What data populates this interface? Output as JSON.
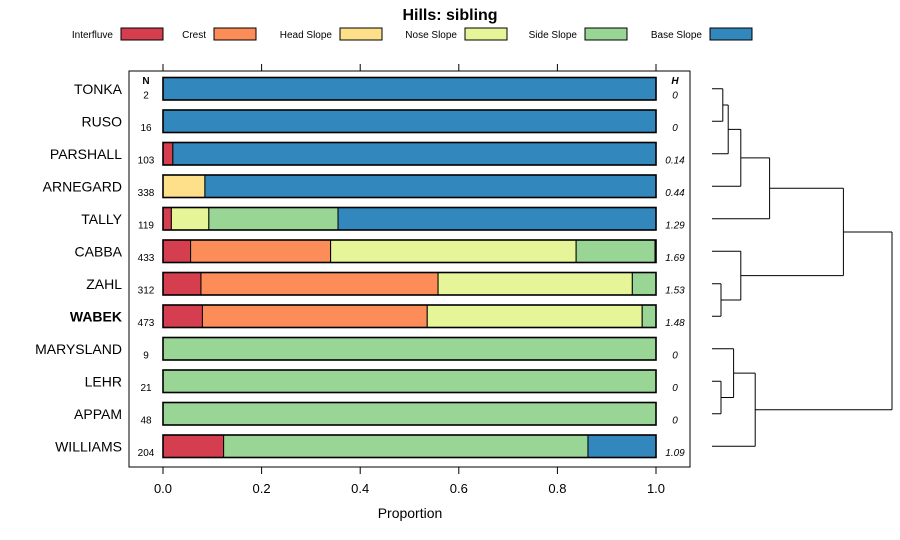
{
  "chart_data": {
    "type": "stacked-bar-horizontal",
    "title": "Hills: sibling",
    "xlabel": "Proportion",
    "ylabel": "",
    "xlim": [
      0,
      1
    ],
    "xticks": [
      "0.0",
      "0.2",
      "0.4",
      "0.6",
      "0.8",
      "1.0"
    ],
    "n_header": "N",
    "h_header": "H",
    "legend": [
      {
        "name": "Interfluve",
        "color": "#d53e4f"
      },
      {
        "name": "Crest",
        "color": "#fc8d59"
      },
      {
        "name": "Head Slope",
        "color": "#fee08b"
      },
      {
        "name": "Nose Slope",
        "color": "#e6f598"
      },
      {
        "name": "Side Slope",
        "color": "#99d594"
      },
      {
        "name": "Base Slope",
        "color": "#3288bd"
      }
    ],
    "rows": [
      {
        "name": "TONKA",
        "n": "2",
        "h": "0",
        "bold": false,
        "values": [
          0,
          0,
          0,
          0,
          0,
          1.0
        ]
      },
      {
        "name": "RUSO",
        "n": "16",
        "h": "0",
        "bold": false,
        "values": [
          0,
          0,
          0,
          0,
          0,
          1.0
        ]
      },
      {
        "name": "PARSHALL",
        "n": "103",
        "h": "0.14",
        "bold": false,
        "values": [
          0.02,
          0,
          0,
          0,
          0,
          0.98
        ]
      },
      {
        "name": "ARNEGARD",
        "n": "338",
        "h": "0.44",
        "bold": false,
        "values": [
          0,
          0,
          0.085,
          0,
          0,
          0.915
        ]
      },
      {
        "name": "TALLY",
        "n": "119",
        "h": "1.29",
        "bold": false,
        "values": [
          0.017,
          0,
          0,
          0.076,
          0.262,
          0.645
        ]
      },
      {
        "name": "CABBA",
        "n": "433",
        "h": "1.69",
        "bold": false,
        "values": [
          0.056,
          0.284,
          0,
          0.498,
          0.16,
          0.002
        ]
      },
      {
        "name": "ZAHL",
        "n": "312",
        "h": "1.53",
        "bold": false,
        "values": [
          0.077,
          0.481,
          0,
          0.394,
          0.048,
          0
        ]
      },
      {
        "name": "WABEK",
        "n": "473",
        "h": "1.48",
        "bold": true,
        "values": [
          0.08,
          0.456,
          0,
          0.436,
          0.028,
          0
        ]
      },
      {
        "name": "MARYSLAND",
        "n": "9",
        "h": "0",
        "bold": false,
        "values": [
          0,
          0,
          0,
          0,
          1.0,
          0
        ]
      },
      {
        "name": "LEHR",
        "n": "21",
        "h": "0",
        "bold": false,
        "values": [
          0,
          0,
          0,
          0,
          1.0,
          0
        ]
      },
      {
        "name": "APPAM",
        "n": "48",
        "h": "0",
        "bold": false,
        "values": [
          0,
          0,
          0,
          0,
          1.0,
          0
        ]
      },
      {
        "name": "WILLIAMS",
        "n": "204",
        "h": "1.09",
        "bold": false,
        "values": [
          0.123,
          0,
          0,
          0,
          0.739,
          0.138
        ]
      }
    ],
    "dendrogram": {
      "note": "hierarchical clustering of rows; merge heights are relative (0 = leaf, 1 = root)",
      "merges": [
        {
          "a": 0,
          "b": 1,
          "height": 0.06
        },
        {
          "a": "m0",
          "b": 2,
          "height": 0.09
        },
        {
          "a": "m1",
          "b": 3,
          "height": 0.16
        },
        {
          "a": "m2",
          "b": 4,
          "height": 0.32
        },
        {
          "a": 6,
          "b": 7,
          "height": 0.05
        },
        {
          "a": 5,
          "b": "m4",
          "height": 0.16
        },
        {
          "a": 9,
          "b": 10,
          "height": 0.05
        },
        {
          "a": 8,
          "b": "m6",
          "height": 0.12
        },
        {
          "a": "m7",
          "b": 11,
          "height": 0.24
        },
        {
          "a": "m3",
          "b": "m5",
          "height": 0.73
        },
        {
          "a": "m9",
          "b": "m8",
          "height": 1.0
        }
      ]
    }
  }
}
